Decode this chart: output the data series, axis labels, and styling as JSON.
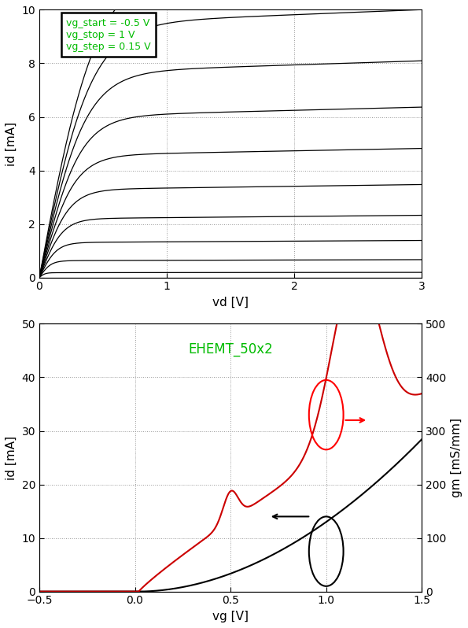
{
  "top_plot": {
    "xlabel": "vd [V]",
    "ylabel": "id [mA]",
    "xlim": [
      0,
      3
    ],
    "ylim": [
      0,
      10
    ],
    "xticks": [
      0,
      1,
      2,
      3
    ],
    "yticks": [
      0,
      2,
      4,
      6,
      8,
      10
    ],
    "vg_start": -0.5,
    "vg_stop": 1.0,
    "vg_step": 0.15,
    "legend_text": "vg_start = -0.5 V\nvg_stop = 1 V\nvg_step = 0.15 V",
    "legend_color": "#00bb00"
  },
  "bottom_plot": {
    "title": "EHEMT_50x2",
    "title_color": "#00bb00",
    "xlabel": "vg [V]",
    "ylabel_left": "id [mA]",
    "ylabel_right": "gm [mS/mm]",
    "xlim": [
      -0.5,
      1.5
    ],
    "ylim_left": [
      0,
      50
    ],
    "ylim_right": [
      0,
      500
    ],
    "xticks": [
      -0.5,
      0.0,
      0.5,
      1.0,
      1.5
    ],
    "yticks_left": [
      0,
      10,
      20,
      30,
      40,
      50
    ],
    "yticks_right": [
      0,
      100,
      200,
      300,
      400,
      500
    ],
    "id_color": "#000000",
    "gm_color": "#cc0000"
  },
  "line_color": "#000000",
  "grid_color": "#999999",
  "grid_style": ":"
}
